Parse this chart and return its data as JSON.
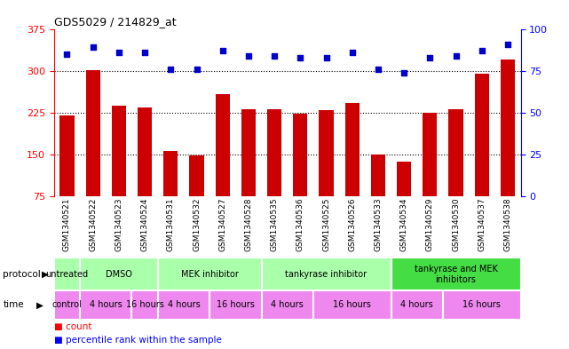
{
  "title": "GDS5029 / 214829_at",
  "samples": [
    "GSM1340521",
    "GSM1340522",
    "GSM1340523",
    "GSM1340524",
    "GSM1340531",
    "GSM1340532",
    "GSM1340527",
    "GSM1340528",
    "GSM1340535",
    "GSM1340536",
    "GSM1340525",
    "GSM1340526",
    "GSM1340533",
    "GSM1340534",
    "GSM1340529",
    "GSM1340530",
    "GSM1340537",
    "GSM1340538"
  ],
  "bar_values": [
    220,
    302,
    237,
    235,
    157,
    148,
    258,
    232,
    232,
    224,
    230,
    242,
    150,
    138,
    225,
    232,
    295,
    320
  ],
  "percentile_values": [
    85,
    89,
    86,
    86,
    76,
    76,
    87,
    84,
    84,
    83,
    83,
    86,
    76,
    74,
    83,
    84,
    87,
    91
  ],
  "bar_color": "#cc0000",
  "dot_color": "#0000cc",
  "ylim_left": [
    75,
    375
  ],
  "ylim_right": [
    0,
    100
  ],
  "yticks_left": [
    75,
    150,
    225,
    300,
    375
  ],
  "yticks_right": [
    0,
    25,
    50,
    75,
    100
  ],
  "grid_values": [
    150,
    225,
    300
  ],
  "protocol_groups": [
    {
      "label": "untreated",
      "start": 0,
      "end": 1,
      "color": "#aaffaa"
    },
    {
      "label": "DMSO",
      "start": 1,
      "end": 4,
      "color": "#aaffaa"
    },
    {
      "label": "MEK inhibitor",
      "start": 4,
      "end": 8,
      "color": "#aaffaa"
    },
    {
      "label": "tankyrase inhibitor",
      "start": 8,
      "end": 13,
      "color": "#aaffaa"
    },
    {
      "label": "tankyrase and MEK\ninhibitors",
      "start": 13,
      "end": 18,
      "color": "#44dd44"
    }
  ],
  "time_groups": [
    {
      "label": "control",
      "start": 0,
      "end": 1,
      "color": "#ee88ee"
    },
    {
      "label": "4 hours",
      "start": 1,
      "end": 3,
      "color": "#ee88ee"
    },
    {
      "label": "16 hours",
      "start": 3,
      "end": 4,
      "color": "#ee88ee"
    },
    {
      "label": "4 hours",
      "start": 4,
      "end": 6,
      "color": "#ee88ee"
    },
    {
      "label": "16 hours",
      "start": 6,
      "end": 8,
      "color": "#ee88ee"
    },
    {
      "label": "4 hours",
      "start": 8,
      "end": 10,
      "color": "#ee88ee"
    },
    {
      "label": "16 hours",
      "start": 10,
      "end": 13,
      "color": "#ee88ee"
    },
    {
      "label": "4 hours",
      "start": 13,
      "end": 15,
      "color": "#ee88ee"
    },
    {
      "label": "16 hours",
      "start": 15,
      "end": 18,
      "color": "#ee88ee"
    }
  ],
  "background_color": "#ffffff"
}
